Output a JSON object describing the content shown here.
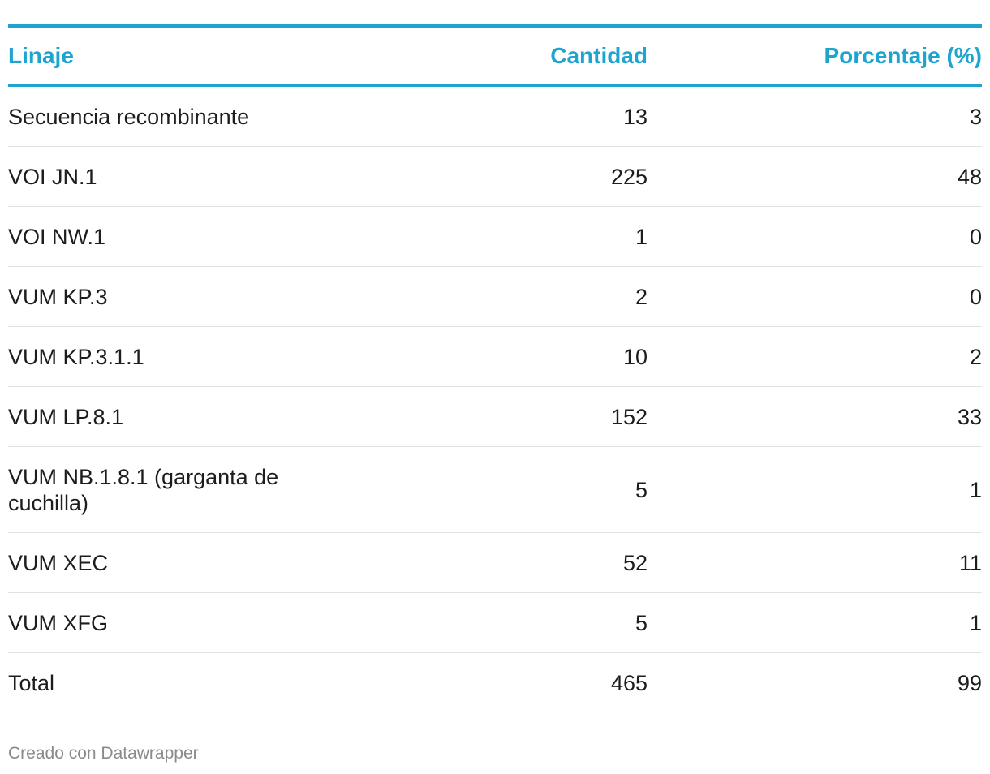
{
  "table": {
    "headers": {
      "linaje": "Linaje",
      "cantidad": "Cantidad",
      "porcentaje": "Porcentaje (%)"
    },
    "rows": [
      {
        "linaje": "Secuencia recombinante",
        "cantidad": "13",
        "porcentaje": "3"
      },
      {
        "linaje": "VOI JN.1",
        "cantidad": "225",
        "porcentaje": "48"
      },
      {
        "linaje": "VOI NW.1",
        "cantidad": "1",
        "porcentaje": "0"
      },
      {
        "linaje": "VUM KP.3",
        "cantidad": "2",
        "porcentaje": "0"
      },
      {
        "linaje": "VUM KP.3.1.1",
        "cantidad": "10",
        "porcentaje": "2"
      },
      {
        "linaje": "VUM LP.8.1",
        "cantidad": "152",
        "porcentaje": "33"
      },
      {
        "linaje": "VUM NB.1.8.1 (garganta de cuchilla)",
        "cantidad": "5",
        "porcentaje": "1"
      },
      {
        "linaje": "VUM XEC",
        "cantidad": "52",
        "porcentaje": "11"
      },
      {
        "linaje": "VUM XFG",
        "cantidad": "5",
        "porcentaje": "1"
      },
      {
        "linaje": "Total",
        "cantidad": "465",
        "porcentaje": "99"
      }
    ]
  },
  "footer": {
    "credit": "Creado con Datawrapper"
  },
  "colors": {
    "accent": "#1ea5cf",
    "row_divider": "#e2e2e2",
    "footer_text": "#8a8a8a"
  }
}
